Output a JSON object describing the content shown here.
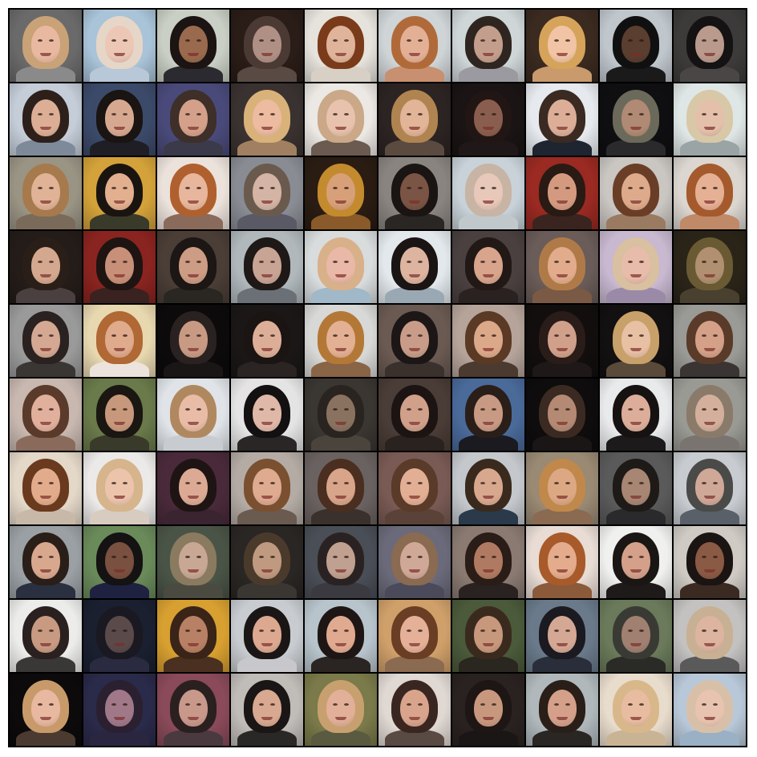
{
  "grid": {
    "rows": 10,
    "cols": 10,
    "description_free": true,
    "tiles": [
      {
        "bg": "#6b6a6a",
        "hair": "#c9a277",
        "skin": "#e8b9a0",
        "cloth": "#8a8a8a"
      },
      {
        "bg": "#a9c3d8",
        "hair": "#e6d6c8",
        "skin": "#ecc7b6",
        "cloth": "#b8c8d8"
      },
      {
        "bg": "#c9cfc4",
        "hair": "#1b1412",
        "skin": "#9a6a4e",
        "cloth": "#2b2a30"
      },
      {
        "bg": "#2a1c17",
        "hair": "#4b3a34",
        "skin": "#b09085",
        "cloth": "#5a4a44"
      },
      {
        "bg": "#e6e2dc",
        "hair": "#7a3b1a",
        "skin": "#e0b49a",
        "cloth": "#d8d0c4"
      },
      {
        "bg": "#cfd4d6",
        "hair": "#b06a3a",
        "skin": "#e3b096",
        "cloth": "#c89070"
      },
      {
        "bg": "#cfd6d8",
        "hair": "#2e2520",
        "skin": "#c49e8c",
        "cloth": "#9a9aa0"
      },
      {
        "bg": "#3a2a20",
        "hair": "#d6a35a",
        "skin": "#f0c4a4",
        "cloth": "#c89a6c"
      },
      {
        "bg": "#bfc6cc",
        "hair": "#111010",
        "skin": "#5a3e30",
        "cloth": "#1a1a1a"
      },
      {
        "bg": "#3d3b3a",
        "hair": "#141212",
        "skin": "#b99a8c",
        "cloth": "#4a4646"
      },
      {
        "bg": "#c4cdd8",
        "hair": "#2d201a",
        "skin": "#dcae96",
        "cloth": "#7e8a9a"
      },
      {
        "bg": "#3c4a6a",
        "hair": "#1a1412",
        "skin": "#d7a890",
        "cloth": "#1e1e24"
      },
      {
        "bg": "#4a4a7a",
        "hair": "#3e2f28",
        "skin": "#d4a08a",
        "cloth": "#3a3a4a"
      },
      {
        "bg": "#3a3230",
        "hair": "#d9b27a",
        "skin": "#ecbba0",
        "cloth": "#a08060"
      },
      {
        "bg": "#ece8e4",
        "hair": "#caa888",
        "skin": "#e8c2ac",
        "cloth": "#6a5a50"
      },
      {
        "bg": "#2c2422",
        "hair": "#b08450",
        "skin": "#e2b498",
        "cloth": "#5a4a40"
      },
      {
        "bg": "#1a1414",
        "hair": "#221615",
        "skin": "#8a5e4e",
        "cloth": "#201818"
      },
      {
        "bg": "#e6eaee",
        "hair": "#3a2a22",
        "skin": "#dcae98",
        "cloth": "#1e2430"
      },
      {
        "bg": "#0f0f12",
        "hair": "#6b6a5a",
        "skin": "#b08a74",
        "cloth": "#2a2a2c"
      },
      {
        "bg": "#dfe6e6",
        "hair": "#d8c8a8",
        "skin": "#e4c0aa",
        "cloth": "#9aa4a4"
      },
      {
        "bg": "#9a9484",
        "hair": "#a67a4c",
        "skin": "#e0b296",
        "cloth": "#7a6a5a"
      },
      {
        "bg": "#d4a23a",
        "hair": "#1a1410",
        "skin": "#e2b08e",
        "cloth": "#3a3a2a"
      },
      {
        "bg": "#ece2dc",
        "hair": "#b0602e",
        "skin": "#e7b69c",
        "cloth": "#8a6a5a"
      },
      {
        "bg": "#8a8c94",
        "hair": "#6a5a4e",
        "skin": "#d4b4a4",
        "cloth": "#5a5a66"
      },
      {
        "bg": "#2a1c12",
        "hair": "#c48a2e",
        "skin": "#d8a078",
        "cloth": "#8a5a2a"
      },
      {
        "bg": "#8a8480",
        "hair": "#1a1412",
        "skin": "#7a5444",
        "cloth": "#2a2624"
      },
      {
        "bg": "#c8d2d8",
        "hair": "#c8b4a4",
        "skin": "#e8c8b8",
        "cloth": "#c0c8cc"
      },
      {
        "bg": "#9a2a22",
        "hair": "#2a1a14",
        "skin": "#d49a80",
        "cloth": "#3a2420"
      },
      {
        "bg": "#cac6c2",
        "hair": "#6a3e26",
        "skin": "#deaa8c",
        "cloth": "#9a7a60"
      },
      {
        "bg": "#dcd6d0",
        "hair": "#a45a2c",
        "skin": "#e6b094",
        "cloth": "#c08a68"
      },
      {
        "bg": "#241c18",
        "hair": "#2a1e18",
        "skin": "#d4a88e",
        "cloth": "#4a4040"
      },
      {
        "bg": "#8a2420",
        "hair": "#1e1412",
        "skin": "#c89078",
        "cloth": "#3a2220"
      },
      {
        "bg": "#4a3e36",
        "hair": "#1c1614",
        "skin": "#cc9c84",
        "cloth": "#2a2622"
      },
      {
        "bg": "#b0b8bc",
        "hair": "#1e1816",
        "skin": "#c8a494",
        "cloth": "#6a7076"
      },
      {
        "bg": "#d8dcdc",
        "hair": "#d8b08a",
        "skin": "#eab8a6",
        "cloth": "#a0b8c8"
      },
      {
        "bg": "#e2e8ec",
        "hair": "#1a1414",
        "skin": "#dcb4a0",
        "cloth": "#9aa8b4"
      },
      {
        "bg": "#4a4040",
        "hair": "#221816",
        "skin": "#d8a48c",
        "cloth": "#2a2220"
      },
      {
        "bg": "#6a5c58",
        "hair": "#b07a48",
        "skin": "#e2ac8c",
        "cloth": "#7a5a44"
      },
      {
        "bg": "#c8b8d0",
        "hair": "#d8c0a0",
        "skin": "#e8bcaa",
        "cloth": "#9a8aa8"
      },
      {
        "bg": "#2a2418",
        "hair": "#6a5a34",
        "skin": "#b09070",
        "cloth": "#4a4030"
      },
      {
        "bg": "#9a9a9a",
        "hair": "#2a2220",
        "skin": "#d4a892",
        "cloth": "#3a3634"
      },
      {
        "bg": "#e8d8b0",
        "hair": "#b06834",
        "skin": "#e0aa8c",
        "cloth": "#ece4dc"
      },
      {
        "bg": "#0c0a0a",
        "hair": "#2a2220",
        "skin": "#c89a84",
        "cloth": "#1a1616"
      },
      {
        "bg": "#1a1716",
        "hair": "#1a1412",
        "skin": "#dcae98",
        "cloth": "#2a2422"
      },
      {
        "bg": "#d8d8d6",
        "hair": "#b47836",
        "skin": "#e4b094",
        "cloth": "#8a6446"
      },
      {
        "bg": "#6a5a52",
        "hair": "#1c1616",
        "skin": "#c89c88",
        "cloth": "#3a302c"
      },
      {
        "bg": "#b6a49a",
        "hair": "#5a3a24",
        "skin": "#dca88a",
        "cloth": "#4a3a30"
      },
      {
        "bg": "#120e0e",
        "hair": "#2a1c18",
        "skin": "#d0a08a",
        "cloth": "#1e1818"
      },
      {
        "bg": "#121010",
        "hair": "#c8a06a",
        "skin": "#e8c0a4",
        "cloth": "#5a4a3a"
      },
      {
        "bg": "#9a9a96",
        "hair": "#5a3a28",
        "skin": "#d4a088",
        "cloth": "#3a3432"
      },
      {
        "bg": "#c8b8b0",
        "hair": "#5a3a2a",
        "skin": "#e0b09c",
        "cloth": "#8a6a5a"
      },
      {
        "bg": "#6a7a4a",
        "hair": "#1a1612",
        "skin": "#c8987c",
        "cloth": "#3a3a2a"
      },
      {
        "bg": "#e0e4e8",
        "hair": "#b08860",
        "skin": "#e8bca6",
        "cloth": "#c8ccd0"
      },
      {
        "bg": "#e4e4e4",
        "hair": "#121010",
        "skin": "#e0b8a8",
        "cloth": "#2a2626"
      },
      {
        "bg": "#3a3632",
        "hair": "#2a2420",
        "skin": "#8a7260",
        "cloth": "#4a443c"
      },
      {
        "bg": "#4a3c36",
        "hair": "#1c1412",
        "skin": "#d0a08a",
        "cloth": "#2a221e"
      },
      {
        "bg": "#4a6a9a",
        "hair": "#2a1e18",
        "skin": "#c89a84",
        "cloth": "#1a1a20"
      },
      {
        "bg": "#0e0c0c",
        "hair": "#3a2a22",
        "skin": "#b48a74",
        "cloth": "#1a1616"
      },
      {
        "bg": "#e8eaec",
        "hair": "#161212",
        "skin": "#dcae9a",
        "cloth": "#1c1a1a"
      },
      {
        "bg": "#9a9a94",
        "hair": "#8a7a6a",
        "skin": "#d4b09c",
        "cloth": "#7a7470"
      },
      {
        "bg": "#e4d8c8",
        "hair": "#6a3a1e",
        "skin": "#e2ac8c",
        "cloth": "#c8b8a8"
      },
      {
        "bg": "#eceae8",
        "hair": "#d6b48c",
        "skin": "#ecc4ac",
        "cloth": "#d8ccc0"
      },
      {
        "bg": "#4a2a3a",
        "hair": "#1e1414",
        "skin": "#dcaa94",
        "cloth": "#3a2430"
      },
      {
        "bg": "#b4aca4",
        "hair": "#7a5030",
        "skin": "#deaa90",
        "cloth": "#6a5a50"
      },
      {
        "bg": "#6a6260",
        "hair": "#4a2e20",
        "skin": "#d8a48a",
        "cloth": "#3a302c"
      },
      {
        "bg": "#7a5a54",
        "hair": "#5a3a28",
        "skin": "#e2ae94",
        "cloth": "#5a4238"
      },
      {
        "bg": "#c4c8cc",
        "hair": "#3a2a1e",
        "skin": "#d8a88e",
        "cloth": "#2a3a4a"
      },
      {
        "bg": "#9a8a74",
        "hair": "#c0884a",
        "skin": "#dca884",
        "cloth": "#8a6a50"
      },
      {
        "bg": "#5a5a5a",
        "hair": "#1e1a18",
        "skin": "#a88674",
        "cloth": "#2a2a2c"
      },
      {
        "bg": "#c8ccd0",
        "hair": "#4a4a48",
        "skin": "#d0a898",
        "cloth": "#5a606a"
      },
      {
        "bg": "#9aa0a4",
        "hair": "#2a1e18",
        "skin": "#d8a88e",
        "cloth": "#2a3040"
      },
      {
        "bg": "#6a8a5a",
        "hair": "#141212",
        "skin": "#7a5040",
        "cloth": "#1e2240"
      },
      {
        "bg": "#4a5446",
        "hair": "#8a7a60",
        "skin": "#c8a894",
        "cloth": "#4a4a40"
      },
      {
        "bg": "#2a2624",
        "hair": "#4a3a2c",
        "skin": "#c09a80",
        "cloth": "#3a3632"
      },
      {
        "bg": "#4a4e56",
        "hair": "#2a2222",
        "skin": "#c0a090",
        "cloth": "#3a3a40"
      },
      {
        "bg": "#6a6a7a",
        "hair": "#8a6a50",
        "skin": "#d0a898",
        "cloth": "#4a4a5a"
      },
      {
        "bg": "#8a7a72",
        "hair": "#2a1c16",
        "skin": "#b07a62",
        "cloth": "#2a2220"
      },
      {
        "bg": "#e8dcd4",
        "hair": "#a85a2a",
        "skin": "#e4ac8c",
        "cloth": "#8a5a3a"
      },
      {
        "bg": "#f0f0ee",
        "hair": "#1a1614",
        "skin": "#d4a08a",
        "cloth": "#1e1a1a"
      },
      {
        "bg": "#cfcac4",
        "hair": "#1a1412",
        "skin": "#8a5a44",
        "cloth": "#3a2a22"
      },
      {
        "bg": "#ececea",
        "hair": "#2a2020",
        "skin": "#c89a82",
        "cloth": "#3a3836"
      },
      {
        "bg": "#1a2030",
        "hair": "#1a1820",
        "skin": "#5a4a4a",
        "cloth": "#2a2a40"
      },
      {
        "bg": "#d8a030",
        "hair": "#3a2418",
        "skin": "#b88064",
        "cloth": "#4a3020"
      },
      {
        "bg": "#c8ccd0",
        "hair": "#1a1616",
        "skin": "#dca890",
        "cloth": "#c8c8cc"
      },
      {
        "bg": "#b8c4cc",
        "hair": "#1e1614",
        "skin": "#e0aa90",
        "cloth": "#2a2422"
      },
      {
        "bg": "#d0a06a",
        "hair": "#6a3e24",
        "skin": "#e4b098",
        "cloth": "#8a6a50"
      },
      {
        "bg": "#4a5a3a",
        "hair": "#3a2a1e",
        "skin": "#c8987c",
        "cloth": "#2a2620"
      },
      {
        "bg": "#6a7a8a",
        "hair": "#1a1a20",
        "skin": "#d4a894",
        "cloth": "#2a2e3a"
      },
      {
        "bg": "#6a7a5a",
        "hair": "#3a3a34",
        "skin": "#a08070",
        "cloth": "#2a2a26"
      },
      {
        "bg": "#c4c2c0",
        "hair": "#c8b094",
        "skin": "#dcb4a0",
        "cloth": "#5a5a5a"
      },
      {
        "bg": "#0c0a0a",
        "hair": "#c89a6a",
        "skin": "#e8b8a0",
        "cloth": "#4a3a30"
      },
      {
        "bg": "#2a2a4a",
        "hair": "#2a2030",
        "skin": "#a07888",
        "cloth": "#2a2640"
      },
      {
        "bg": "#8a4a5a",
        "hair": "#2a2020",
        "skin": "#c8988a",
        "cloth": "#4a3a40"
      },
      {
        "bg": "#c0bcb8",
        "hair": "#1a1616",
        "skin": "#d8a890",
        "cloth": "#2a2826"
      },
      {
        "bg": "#7a7a4a",
        "hair": "#c8a070",
        "skin": "#e2b098",
        "cloth": "#5a5a40"
      },
      {
        "bg": "#e0d8d2",
        "hair": "#3a2620",
        "skin": "#d8a48c",
        "cloth": "#5a4a44"
      },
      {
        "bg": "#2a2220",
        "hair": "#1e1614",
        "skin": "#c8987e",
        "cloth": "#1a1616"
      },
      {
        "bg": "#b0b8bc",
        "hair": "#2a1e18",
        "skin": "#d4a08a",
        "cloth": "#2a2624"
      },
      {
        "bg": "#e8dccc",
        "hair": "#d8b88a",
        "skin": "#e8bca0",
        "cloth": "#c8b494"
      },
      {
        "bg": "#b8c8d8",
        "hair": "#d8c0a8",
        "skin": "#e8c4b0",
        "cloth": "#9ab0c4"
      }
    ]
  }
}
